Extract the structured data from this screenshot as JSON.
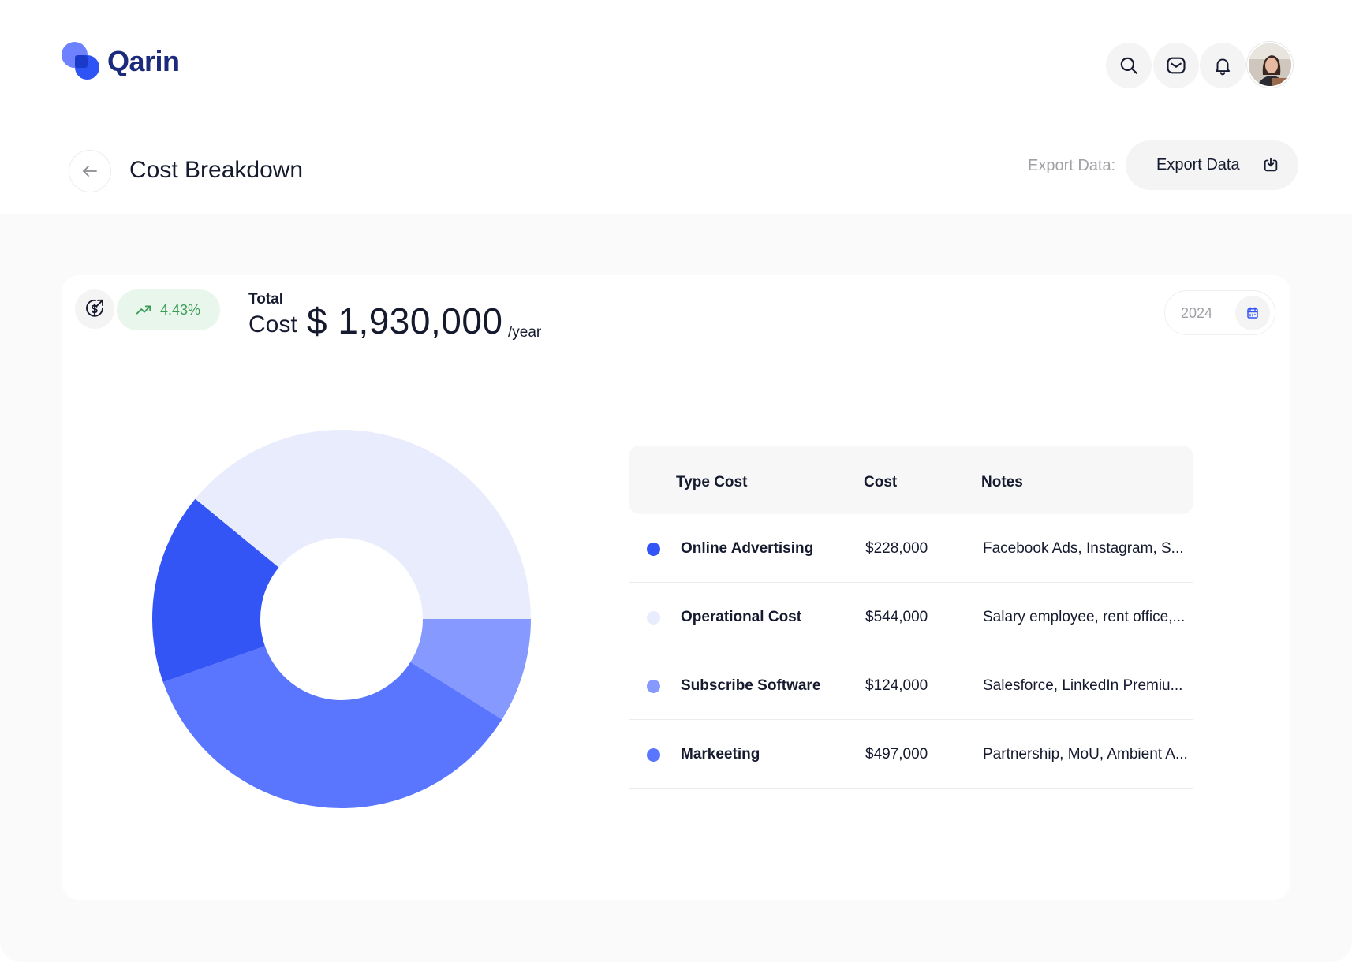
{
  "app": {
    "name": "Qarin"
  },
  "header": {
    "icons": [
      "search-icon",
      "mail-icon",
      "bell-icon"
    ],
    "avatar_alt": "user-avatar"
  },
  "page": {
    "title": "Cost Breakdown",
    "export_label": "Export Data:",
    "export_button": "Export Data"
  },
  "summary": {
    "trend_value": "4.43%",
    "total_label": "Total",
    "cost_label": "Cost",
    "amount": "$ 1,930,000",
    "period": "/year",
    "year": "2024"
  },
  "table": {
    "headers": {
      "type": "Type Cost",
      "cost": "Cost",
      "notes": "Notes"
    },
    "rows": [
      {
        "name": "Online Advertising",
        "cost": "$228,000",
        "notes": "Facebook Ads, Instagram, S...",
        "color": "#3355f5"
      },
      {
        "name": "Operational Cost",
        "cost": "$544,000",
        "notes": "Salary employee, rent office,...",
        "color": "#e9ecfc"
      },
      {
        "name": "Subscribe Software",
        "cost": "$124,000",
        "notes": "Salesforce, LinkedIn Premiu...",
        "color": "#8699ff"
      },
      {
        "name": "Markeeting",
        "cost": "$497,000",
        "notes": "Partnership, MoU, Ambient A...",
        "color": "#5a76ff"
      }
    ]
  },
  "colors": {
    "brand": "#2f54f5",
    "trend_green": "#3b9c58",
    "trend_bg": "#e9f6ec"
  }
}
